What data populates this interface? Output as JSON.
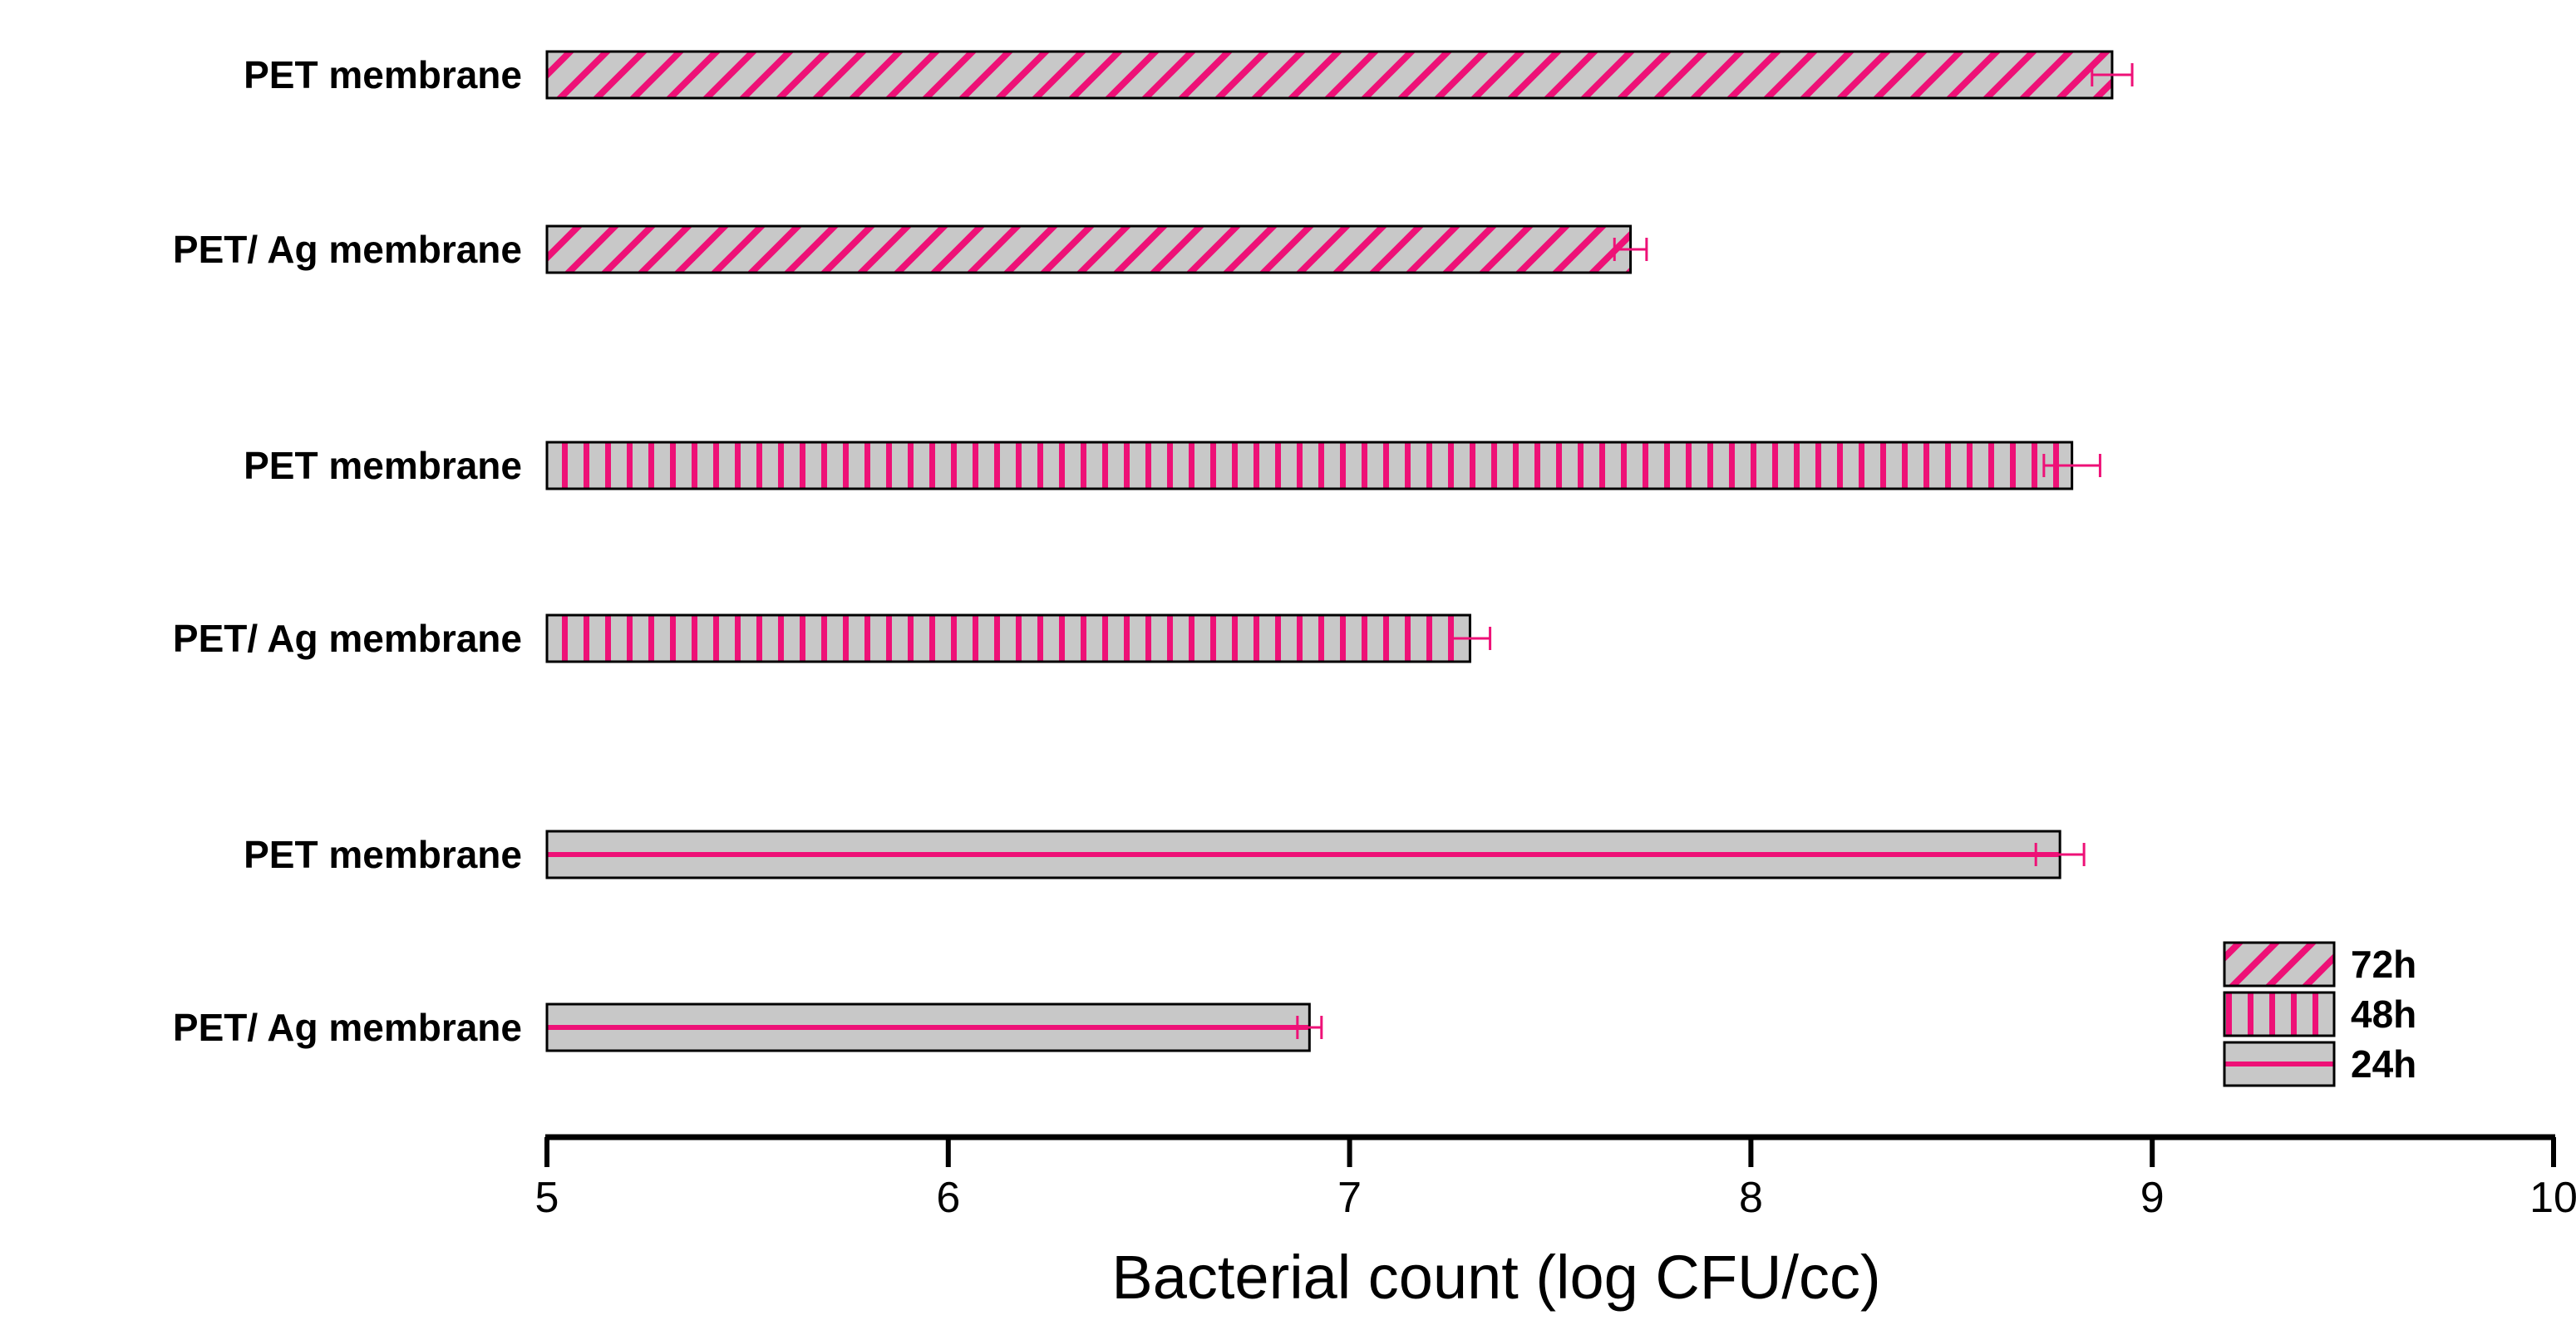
{
  "chart_data": {
    "type": "bar",
    "orientation": "horizontal",
    "xlabel": "Bacterial count (log CFU/cc)",
    "xlim": [
      5,
      10
    ],
    "xticks": [
      "5",
      "6",
      "7",
      "8",
      "9",
      "10"
    ],
    "colors": {
      "pattern": "#ee1177",
      "fill": "#c8c8c8",
      "outline": "#000000"
    },
    "legend_position": "bottom-right",
    "bars": [
      {
        "label": "PET membrane",
        "series": "72h",
        "value": 8.9,
        "error": 0.05
      },
      {
        "label": "PET/ Ag  membrane",
        "series": "72h",
        "value": 7.7,
        "error": 0.04
      },
      {
        "label": "PET membrane",
        "series": "48h",
        "value": 8.8,
        "error": 0.07
      },
      {
        "label": "PET/ Ag  membrane",
        "series": "48h",
        "value": 7.3,
        "error": 0.05
      },
      {
        "label": "PET membrane",
        "series": "24h",
        "value": 8.77,
        "error": 0.06
      },
      {
        "label": "PET/ Ag  membrane",
        "series": "24h",
        "value": 6.9,
        "error": 0.03
      }
    ],
    "legend": [
      {
        "name": "72h",
        "pattern": "diagonal"
      },
      {
        "name": "48h",
        "pattern": "vertical"
      },
      {
        "name": "24h",
        "pattern": "horizontal"
      }
    ]
  }
}
